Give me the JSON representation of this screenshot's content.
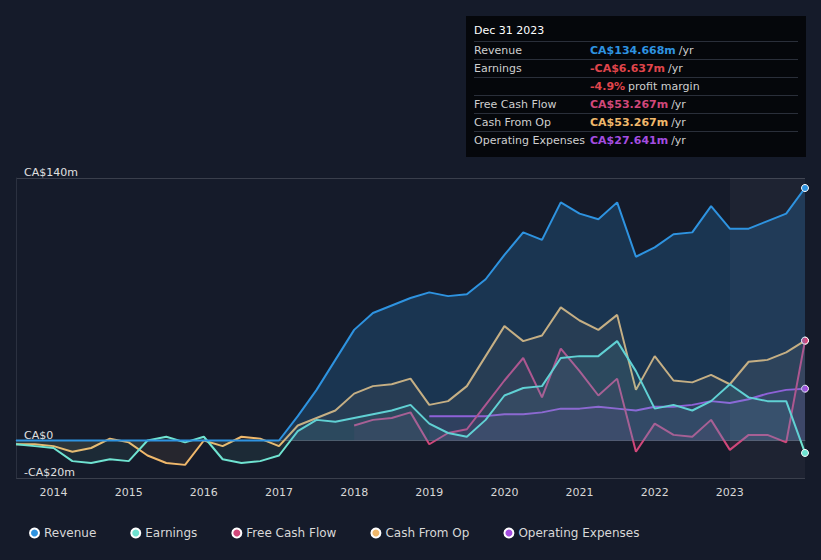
{
  "chart_data": {
    "type": "line",
    "x": [
      2013.5,
      2013.75,
      2014,
      2014.25,
      2014.5,
      2014.75,
      2015,
      2015.25,
      2015.5,
      2015.75,
      2016,
      2016.25,
      2016.5,
      2016.75,
      2017,
      2017.25,
      2017.5,
      2017.75,
      2018,
      2018.25,
      2018.5,
      2018.75,
      2019,
      2019.25,
      2019.5,
      2019.75,
      2020,
      2020.25,
      2020.5,
      2020.75,
      2021,
      2021.25,
      2021.5,
      2021.75,
      2022,
      2022.25,
      2022.5,
      2022.75,
      2023,
      2023.25,
      2023.5,
      2023.75,
      2024
    ],
    "xlim": [
      2013.5,
      2024
    ],
    "xticks": [
      2014,
      2015,
      2016,
      2017,
      2018,
      2019,
      2020,
      2021,
      2022,
      2023
    ],
    "ylim": [
      -20,
      140
    ],
    "yticks": [
      {
        "value": -20,
        "label": "-CA$20m"
      },
      {
        "value": 0,
        "label": "CA$0"
      },
      {
        "value": 140,
        "label": "CA$140m"
      }
    ],
    "grid": true,
    "legend": "bottom",
    "series": [
      {
        "name": "Revenue",
        "color": "#2e93e0",
        "values": [
          0,
          0,
          0,
          0,
          0,
          0,
          0,
          0,
          0,
          0,
          0,
          0,
          0,
          0,
          0,
          13,
          27,
          43,
          59,
          68,
          72,
          76,
          79,
          77,
          78,
          86,
          99,
          111,
          107,
          127,
          121,
          118,
          127,
          98,
          103,
          110,
          111,
          125,
          113,
          113,
          117,
          121,
          134.668
        ]
      },
      {
        "name": "Earnings",
        "color": "#6fe3d1",
        "values": [
          -2,
          -3,
          -4,
          -11,
          -12,
          -10,
          -11,
          0,
          2,
          -1,
          2,
          -10,
          -12,
          -11,
          -8,
          5,
          11,
          10,
          12,
          14,
          16,
          19,
          9,
          4,
          2,
          11,
          24,
          28,
          29,
          44,
          45,
          45,
          53,
          37,
          17,
          19,
          16,
          21,
          30,
          23,
          21,
          21,
          -6.637
        ]
      },
      {
        "name": "Free Cash Flow",
        "color": "#d1477a",
        "values": [
          null,
          null,
          null,
          null,
          null,
          null,
          null,
          null,
          null,
          null,
          null,
          null,
          null,
          null,
          null,
          null,
          null,
          null,
          8,
          11,
          12,
          15,
          -2,
          4,
          6,
          19,
          32,
          44,
          23,
          49,
          37,
          24,
          33,
          -6,
          9,
          3,
          2,
          11,
          -5,
          3,
          3,
          -1,
          53.267
        ]
      },
      {
        "name": "Cash From Op",
        "color": "#f0b86b",
        "values": [
          -2,
          -2,
          -3,
          -6,
          -4,
          1,
          -1,
          -8,
          -12,
          -13,
          0,
          -3,
          2,
          1,
          -3,
          8,
          12,
          16,
          25,
          29,
          30,
          33,
          19,
          21,
          29,
          45,
          61,
          53,
          56,
          71,
          64,
          59,
          67,
          27,
          45,
          32,
          31,
          35,
          30,
          42,
          43,
          47,
          53.267
        ]
      },
      {
        "name": "Operating Expenses",
        "color": "#a44de0",
        "values": [
          null,
          null,
          null,
          null,
          null,
          null,
          null,
          null,
          null,
          null,
          null,
          null,
          null,
          null,
          null,
          null,
          null,
          null,
          null,
          null,
          null,
          null,
          13,
          13,
          13,
          13,
          14,
          14,
          15,
          17,
          17,
          18,
          17,
          16,
          18,
          18,
          19,
          21,
          20,
          22,
          25,
          27,
          27.641
        ]
      }
    ],
    "info_box": {
      "title": "Dec 31 2023",
      "rows": [
        {
          "label": "Revenue",
          "value": "CA$134.668m",
          "unit": "/yr",
          "color": "#2e93e0"
        },
        {
          "label": "Earnings",
          "value": "-CA$6.637m",
          "unit": "/yr",
          "color": "#e0454b"
        },
        {
          "label": "",
          "value": "-4.9%",
          "unit": "profit margin",
          "color": "#e0454b"
        },
        {
          "label": "Free Cash Flow",
          "value": "CA$53.267m",
          "unit": "/yr",
          "color": "#d1477a"
        },
        {
          "label": "Cash From Op",
          "value": "CA$53.267m",
          "unit": "/yr",
          "color": "#f0b86b"
        },
        {
          "label": "Operating Expenses",
          "value": "CA$27.641m",
          "unit": "/yr",
          "color": "#a44de0"
        }
      ]
    }
  }
}
